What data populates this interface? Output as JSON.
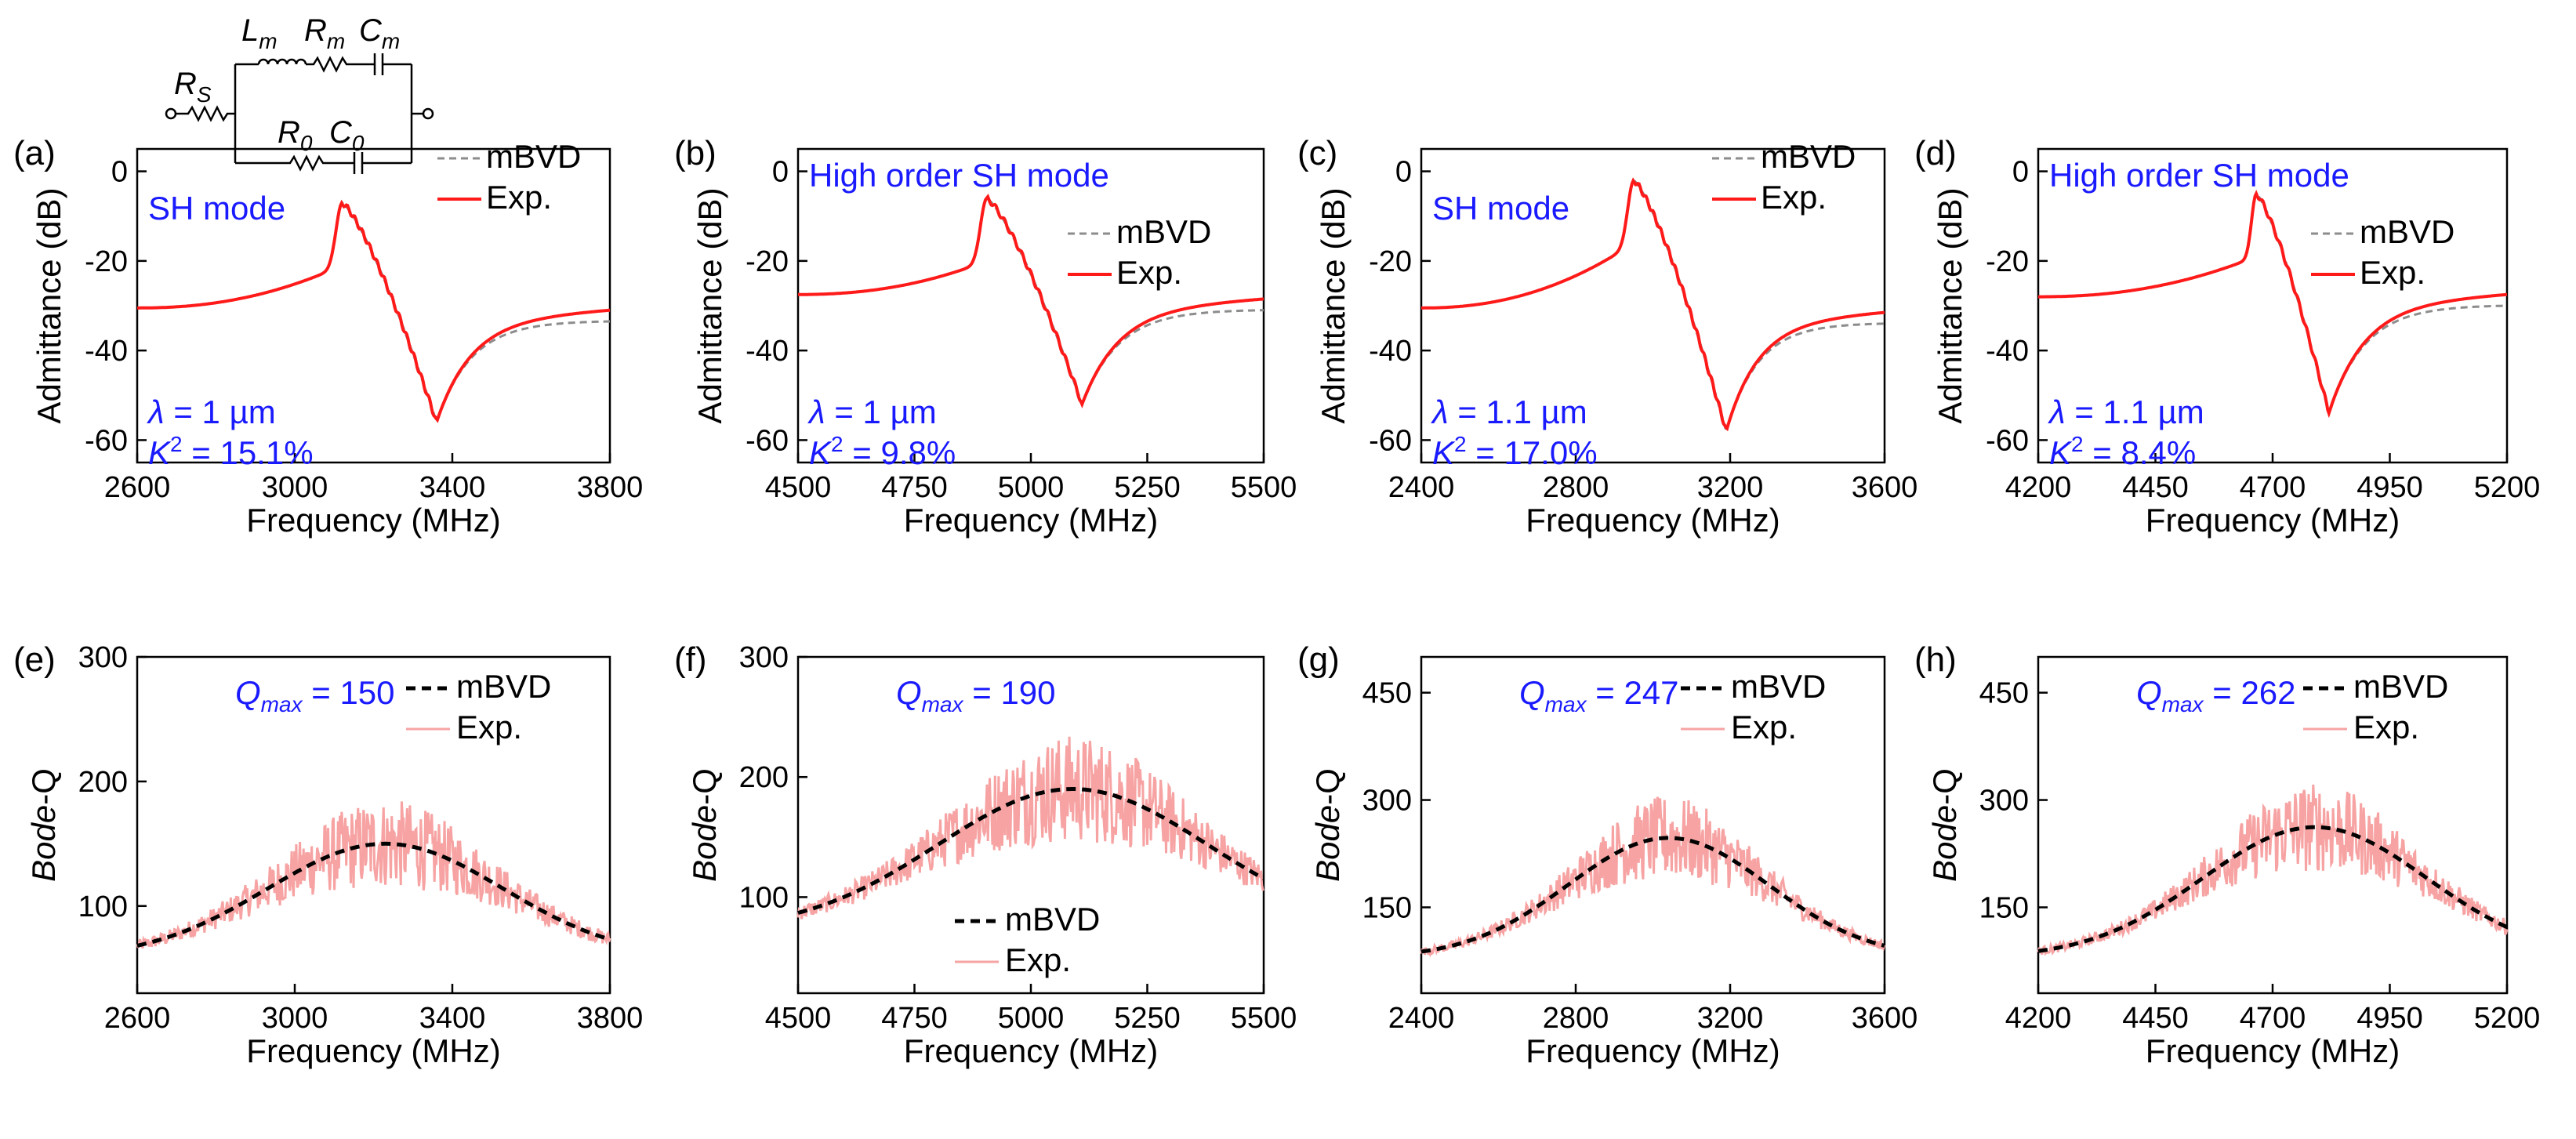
{
  "figure": {
    "circuit": {
      "labels": [
        {
          "name": "Rs",
          "main": "R",
          "sub": "S"
        },
        {
          "name": "Lm",
          "main": "L",
          "sub": "m"
        },
        {
          "name": "Rm",
          "main": "R",
          "sub": "m"
        },
        {
          "name": "Cm",
          "main": "C",
          "sub": "m"
        },
        {
          "name": "R0",
          "main": "R",
          "sub": "0"
        },
        {
          "name": "C0",
          "main": "C",
          "sub": "0"
        }
      ]
    },
    "colors": {
      "exp": "#ff1a1a",
      "exp_q": "#f7a3a3",
      "mbvd": "#8c8c8c",
      "mbvd_q": "#000000",
      "blue": "#1a1aff"
    }
  },
  "chart_data": [
    {
      "type": "line",
      "panel": "(a)",
      "mode": "SH mode",
      "xlabel": "Frequency (MHz)",
      "ylabel": "Admittance (dB)",
      "xlim": [
        2600,
        3800
      ],
      "ylim": [
        -65,
        5
      ],
      "xticks": [
        2600,
        3000,
        3400,
        3800
      ],
      "yticks": [
        0,
        -20,
        -40,
        -60
      ],
      "legend": [
        "mBVD",
        "Exp."
      ],
      "legend_position": "top-right",
      "lambda": "1 µm",
      "k2": "15.1%",
      "res_freq": 3120,
      "anti_freq": 3360,
      "peak_db": -7,
      "dip_db": -56,
      "start_db": -30.5,
      "end_db": -33.5,
      "series": [
        {
          "name": "mBVD",
          "style": "dashed"
        },
        {
          "name": "Exp.",
          "style": "solid"
        }
      ]
    },
    {
      "type": "line",
      "panel": "(b)",
      "mode": "High order SH mode",
      "xlabel": "Frequency (MHz)",
      "ylabel": "Admittance (dB)",
      "xlim": [
        4500,
        5500
      ],
      "ylim": [
        -65,
        5
      ],
      "xticks": [
        4500,
        4750,
        5000,
        5250,
        5500
      ],
      "yticks": [
        0,
        -20,
        -40,
        -60
      ],
      "legend": [
        "mBVD",
        "Exp."
      ],
      "legend_position": "middle-right",
      "lambda": "1 µm",
      "k2": "9.8%",
      "res_freq": 4905,
      "anti_freq": 5110,
      "peak_db": -6,
      "dip_db": -52,
      "start_db": -27.5,
      "end_db": -31,
      "series": [
        {
          "name": "mBVD",
          "style": "dashed"
        },
        {
          "name": "Exp.",
          "style": "solid"
        }
      ]
    },
    {
      "type": "line",
      "panel": "(c)",
      "mode": "SH mode",
      "xlabel": "Frequency (MHz)",
      "ylabel": "Admittance (dB)",
      "xlim": [
        2400,
        3600
      ],
      "ylim": [
        -65,
        5
      ],
      "xticks": [
        2400,
        2800,
        3200,
        3600
      ],
      "yticks": [
        0,
        -20,
        -40,
        -60
      ],
      "legend": [
        "mBVD",
        "Exp."
      ],
      "legend_position": "top-right",
      "lambda": "1.1 µm",
      "k2": "17.0%",
      "res_freq": 2950,
      "anti_freq": 3190,
      "peak_db": -2,
      "dip_db": -58,
      "start_db": -30.5,
      "end_db": -34,
      "series": [
        {
          "name": "mBVD",
          "style": "dashed"
        },
        {
          "name": "Exp.",
          "style": "solid"
        }
      ]
    },
    {
      "type": "line",
      "panel": "(d)",
      "mode": "High order SH mode",
      "xlabel": "Frequency (MHz)",
      "ylabel": "Admittance (dB)",
      "xlim": [
        4200,
        5200
      ],
      "ylim": [
        -65,
        5
      ],
      "xticks": [
        4200,
        4450,
        4700,
        4950,
        5200
      ],
      "yticks": [
        0,
        -20,
        -40,
        -60
      ],
      "legend": [
        "mBVD",
        "Exp."
      ],
      "legend_position": "middle-right",
      "lambda": "1.1 µm",
      "k2": "8.4%",
      "res_freq": 4665,
      "anti_freq": 4820,
      "peak_db": -5,
      "dip_db": -54,
      "start_db": -28,
      "end_db": -30,
      "series": [
        {
          "name": "mBVD",
          "style": "dashed"
        },
        {
          "name": "Exp.",
          "style": "solid"
        }
      ]
    },
    {
      "type": "line",
      "panel": "(e)",
      "qmax_label": "Q",
      "qmax_sub": "max",
      "qmax_value": "= 150",
      "xlabel": "Frequency (MHz)",
      "ylabel_main": "Bode",
      "ylabel_rest": "-Q",
      "xlim": [
        2600,
        3800
      ],
      "ylim": [
        30,
        300
      ],
      "xticks": [
        2600,
        3000,
        3400,
        3800
      ],
      "yticks": [
        100,
        200,
        300
      ],
      "legend": [
        "mBVD",
        "Exp."
      ],
      "legend_position": "top-right",
      "fit": {
        "peak_freq": 3230,
        "peak_q": 150,
        "base_q": 58,
        "sigma": 300
      },
      "series": [
        {
          "name": "mBVD",
          "style": "dashed"
        },
        {
          "name": "Exp.",
          "style": "solid"
        }
      ]
    },
    {
      "type": "line",
      "panel": "(f)",
      "qmax_label": "Q",
      "qmax_sub": "max",
      "qmax_value": "= 190",
      "xlabel": "Frequency (MHz)",
      "ylabel_main": "Bode",
      "ylabel_rest": "-Q",
      "xlim": [
        4500,
        5500
      ],
      "ylim": [
        20,
        300
      ],
      "xticks": [
        4500,
        4750,
        5000,
        5250,
        5500
      ],
      "yticks": [
        100,
        200,
        300
      ],
      "legend": [
        "mBVD",
        "Exp."
      ],
      "legend_position": "bottom-center",
      "fit": {
        "peak_freq": 5090,
        "peak_q": 190,
        "base_q": 72,
        "sigma": 290
      },
      "series": [
        {
          "name": "mBVD",
          "style": "dashed"
        },
        {
          "name": "Exp.",
          "style": "solid"
        }
      ]
    },
    {
      "type": "line",
      "panel": "(g)",
      "qmax_label": "Q",
      "qmax_sub": "max",
      "qmax_value": "= 247",
      "xlabel": "Frequency (MHz)",
      "ylabel_main": "Bode",
      "ylabel_rest": "-Q",
      "xlim": [
        2400,
        3600
      ],
      "ylim": [
        30,
        500
      ],
      "xticks": [
        2400,
        2800,
        3200,
        3600
      ],
      "yticks": [
        150,
        300,
        450
      ],
      "legend": [
        "mBVD",
        "Exp."
      ],
      "legend_position": "top-right",
      "fit": {
        "peak_freq": 3040,
        "peak_q": 247,
        "base_q": 80,
        "sigma": 260
      },
      "series": [
        {
          "name": "mBVD",
          "style": "dashed"
        },
        {
          "name": "Exp.",
          "style": "solid"
        }
      ]
    },
    {
      "type": "line",
      "panel": "(h)",
      "qmax_label": "Q",
      "qmax_sub": "max",
      "qmax_value": "= 262",
      "xlabel": "Frequency (MHz)",
      "ylabel_main": "Bode",
      "ylabel_rest": "-Q",
      "xlim": [
        4200,
        5200
      ],
      "ylim": [
        30,
        500
      ],
      "xticks": [
        4200,
        4450,
        4700,
        4950,
        5200
      ],
      "yticks": [
        150,
        300,
        450
      ],
      "legend": [
        "mBVD",
        "Exp."
      ],
      "legend_position": "top-right",
      "fit": {
        "peak_freq": 4790,
        "peak_q": 262,
        "base_q": 80,
        "sigma": 240
      },
      "series": [
        {
          "name": "mBVD",
          "style": "dashed"
        },
        {
          "name": "Exp.",
          "style": "solid"
        }
      ]
    }
  ]
}
